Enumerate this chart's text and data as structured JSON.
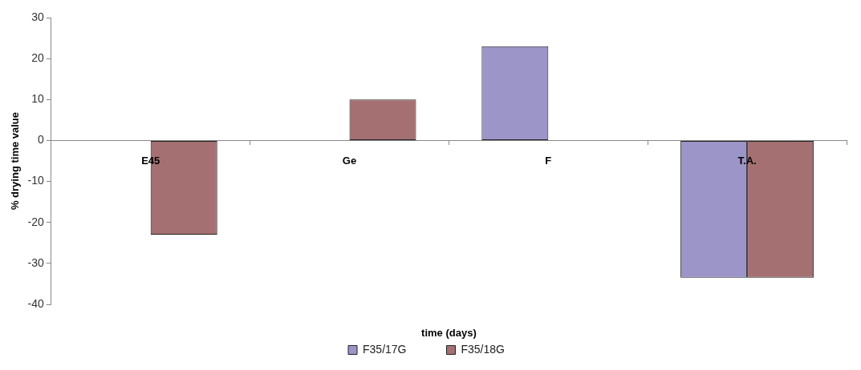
{
  "chart_data": {
    "type": "bar",
    "xlabel": "time (days)",
    "ylabel": "% drying time value",
    "categories": [
      "E45",
      "Ge",
      "F",
      "T.A."
    ],
    "series": [
      {
        "name": "F35/17G",
        "color": "#9c95c8",
        "values": [
          null,
          null,
          23,
          -33.5
        ]
      },
      {
        "name": "F35/18G",
        "color": "#a47072",
        "values": [
          -23,
          10,
          null,
          -33.5
        ]
      }
    ],
    "ylim": [
      -40,
      30
    ],
    "yticks": [
      -40,
      -30,
      -20,
      -10,
      0,
      10,
      20,
      30
    ],
    "grid": false,
    "legend": "bottom"
  }
}
